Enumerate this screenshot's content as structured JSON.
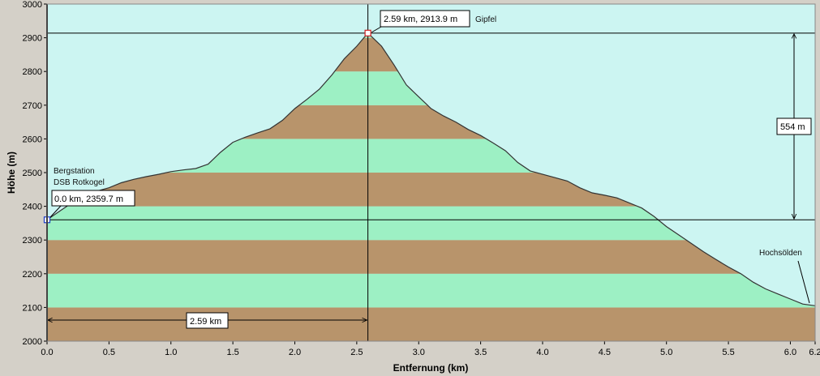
{
  "chart_data": {
    "type": "area",
    "title": "",
    "xlabel": "Entfernung   (km)",
    "ylabel": "Höhe (m)",
    "xlim": [
      0,
      6.2
    ],
    "ylim": [
      2000,
      3000
    ],
    "x_ticks": [
      0.0,
      0.5,
      1.0,
      1.5,
      2.0,
      2.5,
      3.0,
      3.5,
      4.0,
      4.5,
      5.0,
      5.5,
      6.0,
      6.2
    ],
    "x_tick_labels": [
      "0.0",
      "0.5",
      "1.0",
      "1.5",
      "2.0",
      "2.5",
      "3.0",
      "3.5",
      "4.0",
      "4.5",
      "5.0",
      "5.5",
      "6.0",
      "6.2"
    ],
    "y_ticks": [
      2000,
      2100,
      2200,
      2300,
      2400,
      2500,
      2600,
      2700,
      2800,
      2900,
      3000
    ],
    "y_tick_labels": [
      "2000",
      "2100",
      "2200",
      "2300",
      "2400",
      "2500",
      "2600",
      "2700",
      "2800",
      "2900",
      "3000"
    ],
    "band_step": 100,
    "colors": {
      "sky": "#ccf5f2",
      "band_light": "#9df0c4",
      "band_dark": "#b8946b",
      "profile_line": "#333333",
      "frame": "#d4d0c8"
    },
    "series": [
      {
        "x": [
          0.0,
          0.1,
          0.2,
          0.3,
          0.4,
          0.5,
          0.6,
          0.7,
          0.8,
          0.9,
          1.0,
          1.1,
          1.2,
          1.3,
          1.4,
          1.5,
          1.6,
          1.7,
          1.8,
          1.9,
          2.0,
          2.1,
          2.2,
          2.3,
          2.4,
          2.5,
          2.59,
          2.7,
          2.8,
          2.9,
          3.0,
          3.1,
          3.2,
          3.3,
          3.4,
          3.5,
          3.6,
          3.7,
          3.8,
          3.9,
          4.0,
          4.1,
          4.2,
          4.3,
          4.4,
          4.5,
          4.6,
          4.7,
          4.8,
          4.9,
          5.0,
          5.1,
          5.2,
          5.3,
          5.4,
          5.5,
          5.6,
          5.7,
          5.8,
          5.9,
          6.0,
          6.1,
          6.2
        ],
        "y": [
          2360,
          2385,
          2410,
          2430,
          2445,
          2455,
          2470,
          2480,
          2488,
          2495,
          2503,
          2508,
          2512,
          2525,
          2560,
          2590,
          2605,
          2618,
          2630,
          2655,
          2690,
          2718,
          2748,
          2790,
          2838,
          2875,
          2913.9,
          2875,
          2820,
          2760,
          2725,
          2690,
          2668,
          2650,
          2628,
          2610,
          2588,
          2565,
          2530,
          2505,
          2495,
          2485,
          2475,
          2455,
          2440,
          2433,
          2425,
          2410,
          2395,
          2370,
          2340,
          2315,
          2290,
          2265,
          2242,
          2220,
          2200,
          2175,
          2155,
          2140,
          2125,
          2110,
          2105
        ]
      }
    ],
    "annotations": {
      "start_station": [
        "Bergstation",
        "DSB Rotkogel"
      ],
      "start_point": "0.0 km, 2359.7 m",
      "summit_point": "2.59 km, 2913.9 m",
      "summit_name": "Gipfel",
      "end_station": "Hochsölden",
      "distance_label": "2.59 km",
      "height_diff_label": "554 m"
    }
  }
}
